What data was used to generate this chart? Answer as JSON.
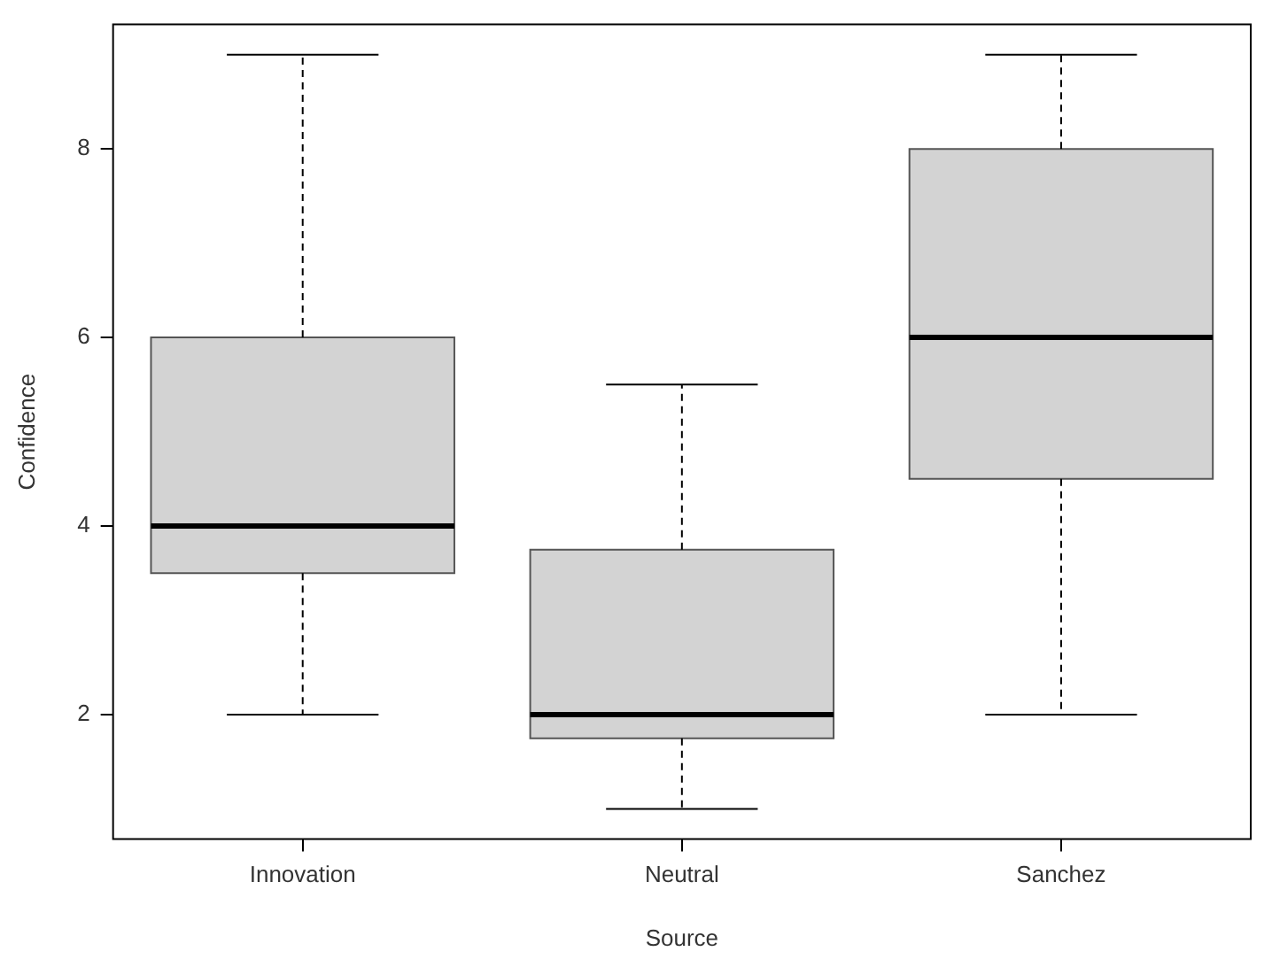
{
  "chart_data": {
    "type": "box",
    "xlabel": "Source",
    "ylabel": "Confidence",
    "categories": [
      "Innovation",
      "Neutral",
      "Sanchez"
    ],
    "boxes": [
      {
        "low": 2,
        "q1": 3.5,
        "median": 4,
        "q3": 6,
        "high": 9
      },
      {
        "low": 1,
        "q1": 1.75,
        "median": 2,
        "q3": 3.75,
        "high": 5.5
      },
      {
        "low": 2,
        "q1": 4.5,
        "median": 6,
        "q3": 8,
        "high": 9
      }
    ],
    "color": "#d3d3d3",
    "ylim": [
      0.68,
      9.32
    ],
    "yticks": [
      2,
      4,
      6,
      8
    ],
    "grid": false,
    "legend": false
  }
}
